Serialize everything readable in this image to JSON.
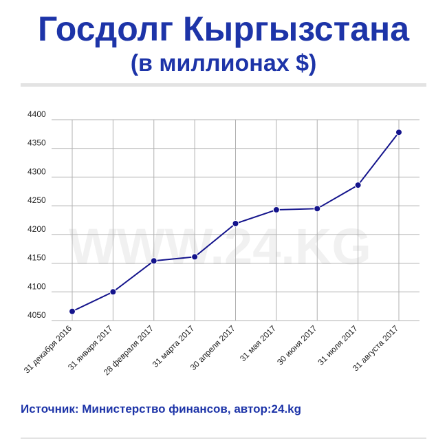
{
  "header": {
    "title": "Госдолг Кыргызстана",
    "subtitle": "(в миллионах $)"
  },
  "watermark": "WWW.24.KG",
  "footer": {
    "source": "Источник: Министерство финансов, автор:24.kg"
  },
  "colors": {
    "accent": "#1d34a8",
    "line": "#14148c",
    "grid": "#b0b0b0"
  },
  "chart_data": {
    "type": "line",
    "title": "Госдолг Кыргызстана",
    "subtitle": "(в миллионах $)",
    "categories": [
      "31 декабря 2016",
      "31 января 2017",
      "28 февраля 2017",
      "31 марта 2017",
      "30 апреля 2017",
      "31 мая 2017",
      "30 июня 2017",
      "31 июля 2017",
      "31 августа 2017"
    ],
    "values": [
      4066,
      4100,
      4154,
      4161,
      4219,
      4243,
      4245,
      4286,
      4378
    ],
    "ylim": [
      4050,
      4400
    ],
    "yticks": [
      4050,
      4100,
      4150,
      4200,
      4250,
      4300,
      4350,
      4400
    ],
    "grid": true,
    "legend": "none"
  }
}
